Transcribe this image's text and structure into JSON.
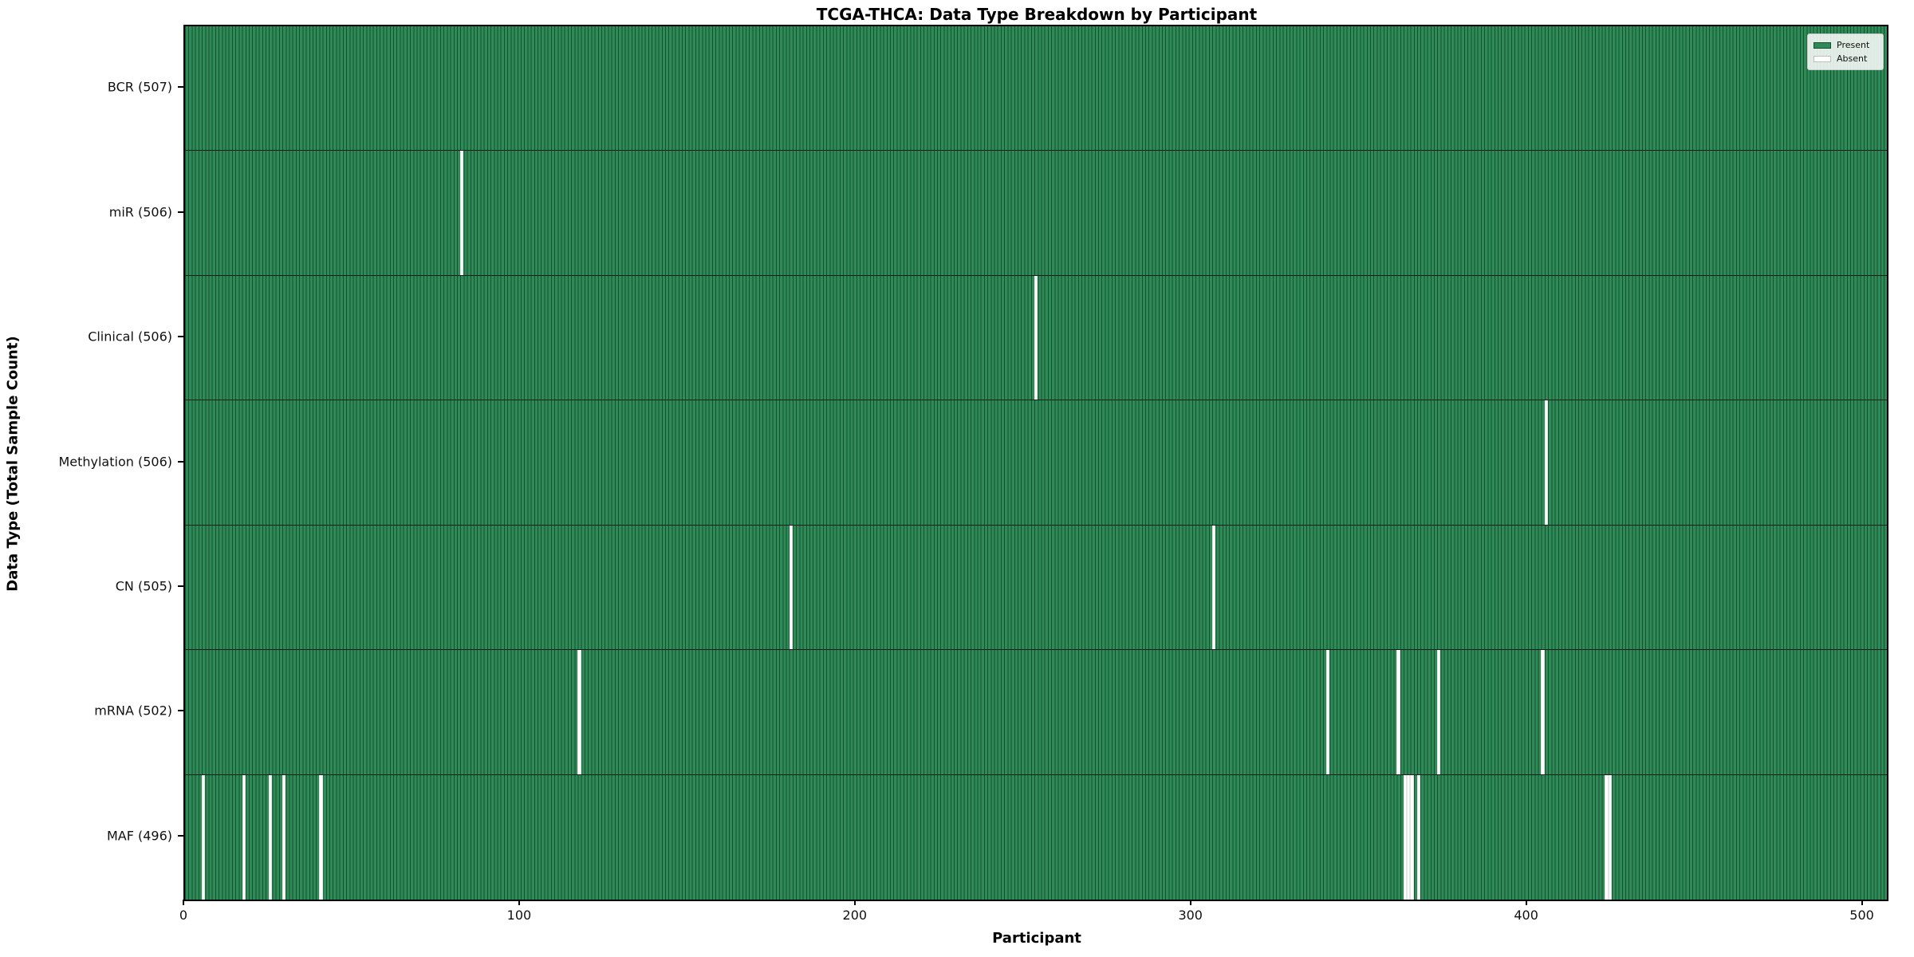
{
  "title": "TCGA-THCA: Data Type Breakdown by Participant",
  "xlabel": "Participant",
  "ylabel": "Data Type (Total Sample Count)",
  "legend": {
    "present_label": "Present",
    "absent_label": "Absent",
    "position": "upper right"
  },
  "colors": {
    "present": "#2e8b57",
    "absent": "#ffffff",
    "bar_edge": "#1b4d33",
    "row_border": "#1c1c1c"
  },
  "chart_data": {
    "type": "heatmap",
    "title": "TCGA-THCA: Data Type Breakdown by Participant",
    "xlabel": "Participant",
    "ylabel": "Data Type (Total Sample Count)",
    "n_participants": 507,
    "xlim": [
      0,
      507
    ],
    "x_ticks": [
      0,
      100,
      200,
      300,
      400,
      500
    ],
    "grid": false,
    "legend_entries": [
      "Present",
      "Absent"
    ],
    "rows": [
      {
        "key": "bcr",
        "label": "BCR (507)",
        "total": 507,
        "absent_participants": []
      },
      {
        "key": "mir",
        "label": "miR (506)",
        "total": 506,
        "absent_participants": [
          82
        ]
      },
      {
        "key": "clinical",
        "label": "Clinical (506)",
        "total": 506,
        "absent_participants": [
          253
        ]
      },
      {
        "key": "methylation",
        "label": "Methylation (506)",
        "total": 506,
        "absent_participants": [
          405
        ]
      },
      {
        "key": "cn",
        "label": "CN (505)",
        "total": 505,
        "absent_participants": [
          180,
          306
        ]
      },
      {
        "key": "mrna",
        "label": "mRNA (502)",
        "total": 502,
        "absent_participants": [
          117,
          340,
          361,
          373,
          404
        ]
      },
      {
        "key": "maf",
        "label": "MAF (496)",
        "total": 496,
        "absent_participants": [
          5,
          17,
          25,
          29,
          40,
          363,
          364,
          365,
          367,
          423,
          424
        ]
      }
    ]
  }
}
